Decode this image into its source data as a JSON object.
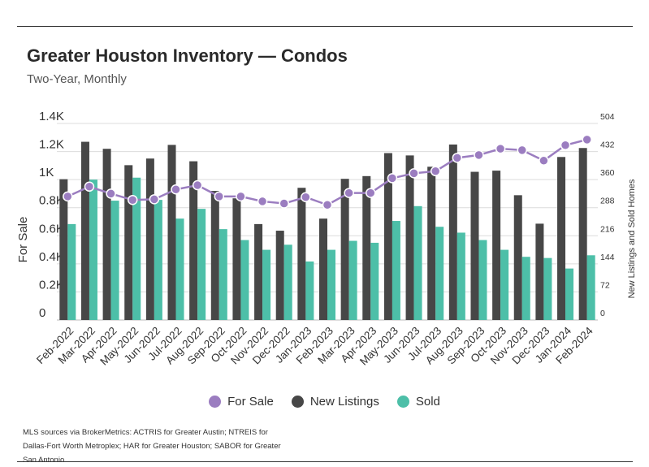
{
  "title": "Greater Houston Inventory — Condos",
  "subtitle": "Two-Year, Monthly",
  "source": "MLS sources via BrokerMetrics: ACTRIS for Greater Austin; NTREIS for Dallas-Fort Worth Metroplex; HAR for Greater Houston; SABOR for Greater San Antonio",
  "colors": {
    "for_sale": "#9b7dc0",
    "new_listings": "#474747",
    "sold": "#4dbfa8"
  },
  "legend": [
    {
      "label": "For Sale",
      "color": "#9b7dc0"
    },
    {
      "label": "New Listings",
      "color": "#474747"
    },
    {
      "label": "Sold",
      "color": "#4dbfa8"
    }
  ],
  "chart_data": {
    "type": "bar",
    "categories": [
      "Feb-2022",
      "Mar-2022",
      "Apr-2022",
      "May-2022",
      "Jun-2022",
      "Jul-2022",
      "Aug-2022",
      "Sep-2022",
      "Oct-2022",
      "Nov-2022",
      "Dec-2022",
      "Jan-2023",
      "Feb-2023",
      "Mar-2023",
      "Apr-2023",
      "May-2023",
      "Jun-2023",
      "Jul-2023",
      "Aug-2023",
      "Sep-2023",
      "Oct-2023",
      "Nov-2023",
      "Dec-2023",
      "Jan-2024",
      "Feb-2024"
    ],
    "ylabel": "For Sale",
    "y2label": "New Listings and Sold Homes",
    "yticks": [
      "0",
      "0.2K",
      "0.4K",
      "0.6K",
      "0.8K",
      "1K",
      "1.2K",
      "1.4K"
    ],
    "y2ticks": [
      "0",
      "72",
      "144",
      "216",
      "288",
      "360",
      "432",
      "504"
    ],
    "ylim": [
      0,
      1400
    ],
    "y2lim": [
      0,
      504
    ],
    "grid": true,
    "legend_position": "bottom",
    "series": [
      {
        "name": "New Listings",
        "type": "bar",
        "axis": "right",
        "values": [
          361,
          457,
          439,
          397,
          414,
          449,
          407,
          331,
          312,
          246,
          229,
          339,
          260,
          362,
          369,
          428,
          422,
          393,
          450,
          380,
          383,
          320,
          247,
          418,
          441
        ]
      },
      {
        "name": "Sold",
        "type": "bar",
        "axis": "right",
        "values": [
          246,
          360,
          306,
          365,
          308,
          260,
          285,
          233,
          205,
          180,
          193,
          150,
          180,
          203,
          198,
          254,
          292,
          239,
          224,
          205,
          180,
          162,
          159,
          132,
          166
        ]
      },
      {
        "name": "For Sale",
        "type": "line",
        "axis": "left",
        "values": [
          880,
          950,
          900,
          855,
          860,
          930,
          960,
          880,
          880,
          845,
          830,
          875,
          820,
          905,
          905,
          1010,
          1045,
          1060,
          1155,
          1175,
          1220,
          1210,
          1135,
          1245,
          1285
        ]
      }
    ]
  }
}
